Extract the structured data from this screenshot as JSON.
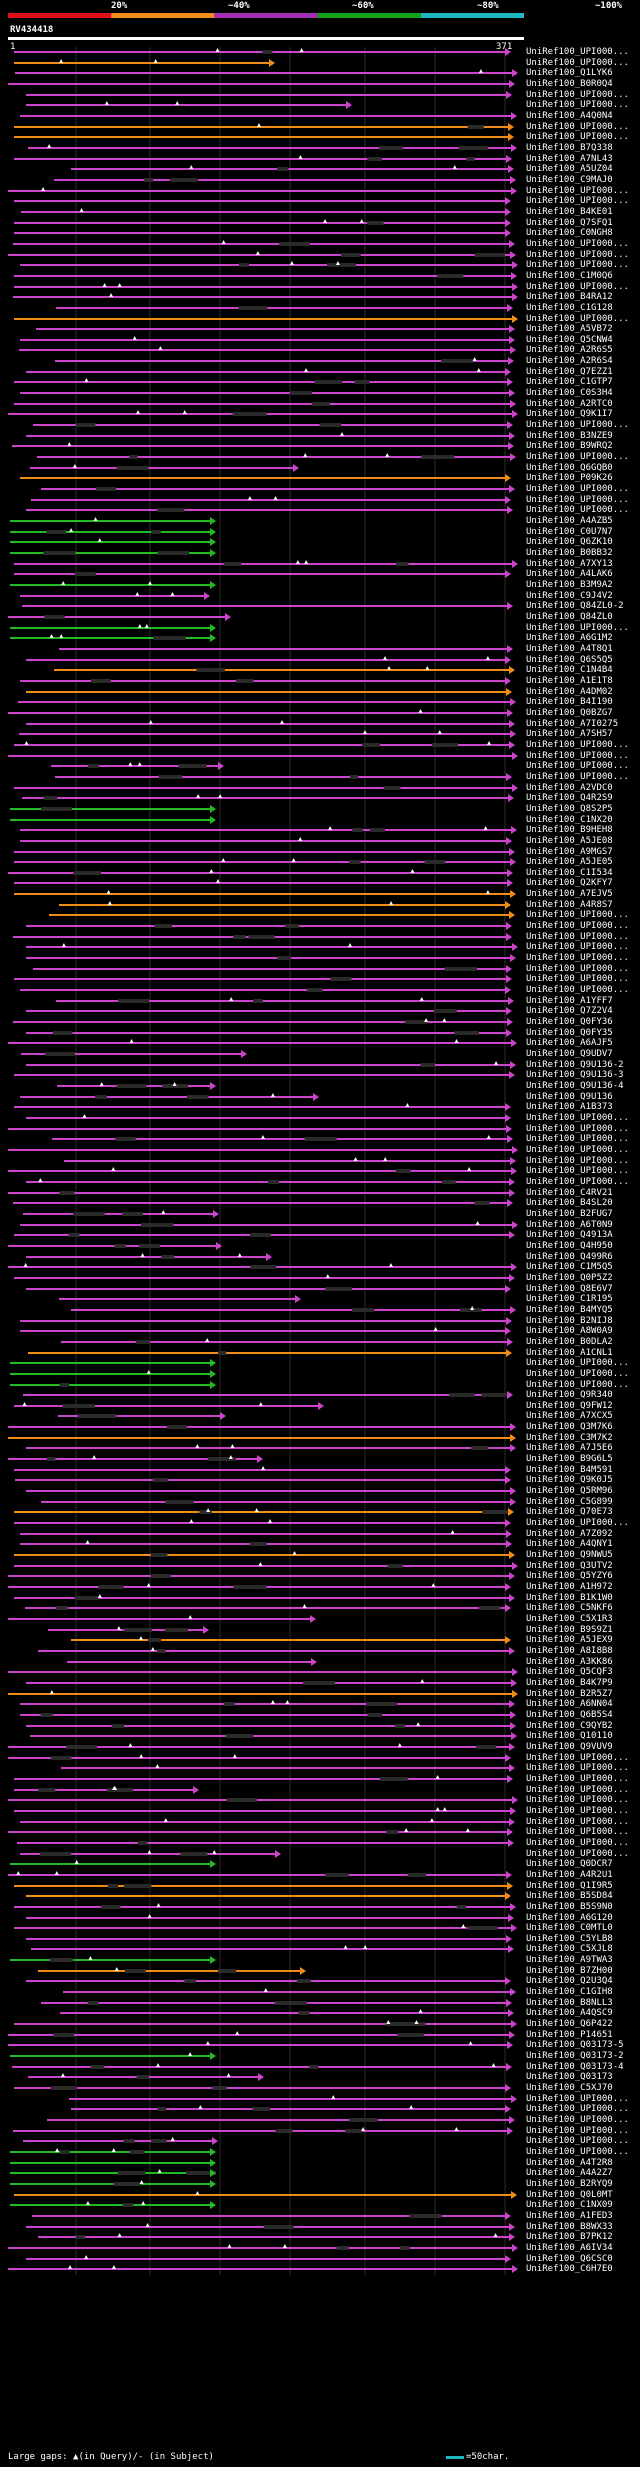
{
  "header": {
    "scale_labels": [
      "20%",
      "~40%",
      "~60%",
      "~80%",
      "~100%"
    ],
    "scale_colors": [
      "#e0101a",
      "#f28c1c",
      "#a52db4",
      "#12a31a",
      "#1eb9c0"
    ],
    "query_id": "RV434418",
    "range_start": "1",
    "range_end": "371"
  },
  "colors": {
    "magenta": "#cc44cc",
    "orange": "#f08c18",
    "green": "#22bb22",
    "gap": "#2a2a2a",
    "grid": "#2b2b2b"
  },
  "sequences": [
    "UniRef100_UPI000...",
    "UniRef100_UPI000...",
    "UniRef100_Q1LYK6",
    "UniRef100_B0R0Q4",
    "UniRef100_UPI000...",
    "UniRef100_UPI000...",
    "UniRef100_A4Q0N4",
    "UniRef100_UPI000...",
    "UniRef100_UPI000...",
    "UniRef100_B7Q338",
    "UniRef100_A7NL43",
    "UniRef100_A5UZ04",
    "UniRef100_C9MAJ0",
    "UniRef100_UPI000...",
    "UniRef100_UPI000...",
    "UniRef100_B4KE01",
    "UniRef100_Q7SFQ1",
    "UniRef100_C0NGH8",
    "UniRef100_UPI000...",
    "UniRef100_UPI000...",
    "UniRef100_UPI000...",
    "UniRef100_C1M0Q6",
    "UniRef100_UPI000...",
    "UniRef100_B4RA12",
    "UniRef100_C1G128",
    "UniRef100_UPI000...",
    "UniRef100_A5VB72",
    "UniRef100_Q5CNW4",
    "UniRef100_A2R6S5",
    "UniRef100_A2R6S4",
    "UniRef100_Q7EZZ1",
    "UniRef100_C1GTP7",
    "UniRef100_C0S3H4",
    "UniRef100_A2RTC0",
    "UniRef100_Q9K1I7",
    "UniRef100_UPI000...",
    "UniRef100_B3NZE9",
    "UniRef100_B9WRQ2",
    "UniRef100_UPI000...",
    "UniRef100_Q6GQB0",
    "UniRef100_P09K26",
    "UniRef100_UPI000...",
    "UniRef100_UPI000...",
    "UniRef100_UPI000...",
    "UniRef100_A4AZB5",
    "UniRef100_C0U7N7",
    "UniRef100_Q6ZK10",
    "UniRef100_B0BB32",
    "UniRef100_A7XY13",
    "UniRef100_A4LAK6",
    "UniRef100_B3M9A2",
    "UniRef100_C9J4V2",
    "UniRef100_Q84ZL0-2",
    "UniRef100_Q84ZL0",
    "UniRef100_UPI000...",
    "UniRef100_A6G1M2",
    "UniRef100_A4T8Q1",
    "UniRef100_Q6S5Q5",
    "UniRef100_C1N4B4",
    "UniRef100_A1E1T8",
    "UniRef100_A4DM02",
    "UniRef100_B4I190",
    "UniRef100_Q0BZG7",
    "UniRef100_A7I0275",
    "UniRef100_A7SH57",
    "UniRef100_UPI000...",
    "UniRef100_UPI000...",
    "UniRef100_UPI000...",
    "UniRef100_UPI000...",
    "UniRef100_A2VDC0",
    "UniRef100_Q4R2S9",
    "UniRef100_Q8S2P5",
    "UniRef100_C1NX20",
    "UniRef100_B9HEH8",
    "UniRef100_A5JE08",
    "UniRef100_A9MGS7",
    "UniRef100_A5JE05",
    "UniRef100_C1I534",
    "UniRef100_Q2KFY7",
    "UniRef100_A7EJV5",
    "UniRef100_A4R8S7",
    "UniRef100_UPI000...",
    "UniRef100_UPI000...",
    "UniRef100_UPI000...",
    "UniRef100_UPI000...",
    "UniRef100_UPI000...",
    "UniRef100_UPI000...",
    "UniRef100_UPI000...",
    "UniRef100_UPI000...",
    "UniRef100_A1YFF7",
    "UniRef100_Q7Z2V4",
    "UniRef100_Q0FY36",
    "UniRef100_Q0FY35",
    "UniRef100_A6AJF5",
    "UniRef100_Q9UDV7",
    "UniRef100_Q9U136-2",
    "UniRef100_Q9U136-3",
    "UniRef100_Q9U136-4",
    "UniRef100_Q9U136",
    "UniRef100_A1B373",
    "UniRef100_UPI000...",
    "UniRef100_UPI000...",
    "UniRef100_UPI000...",
    "UniRef100_UPI000...",
    "UniRef100_UPI000...",
    "UniRef100_UPI000...",
    "UniRef100_UPI000...",
    "UniRef100_C4RV21",
    "UniRef100_B4SL20",
    "UniRef100_B2FUG7",
    "UniRef100_A6T0N9",
    "UniRef100_Q4913A",
    "UniRef100_Q4H950",
    "UniRef100_Q499R6",
    "UniRef100_C1M5Q5",
    "UniRef100_Q0P5Z2",
    "UniRef100_Q8E6V7",
    "UniRef100_C1R195",
    "UniRef100_B4MYQ5",
    "UniRef100_B2NIJ8",
    "UniRef100_A8W0A9",
    "UniRef100_B0DLA2",
    "UniRef100_A1CNL1",
    "UniRef100_UPI000...",
    "UniRef100_UPI000...",
    "UniRef100_UPI000...",
    "UniRef100_Q9R340",
    "UniRef100_Q9FW12",
    "UniRef100_A7XCX5",
    "UniRef100_Q3M7K6",
    "UniRef100_C3M7K2",
    "UniRef100_A7J5E6",
    "UniRef100_B9G6L5",
    "UniRef100_B4M591",
    "UniRef100_Q9K0J5",
    "UniRef100_Q5RM96",
    "UniRef100_C5G899",
    "UniRef100_Q70E73",
    "UniRef100_UPI000...",
    "UniRef100_A7Z092",
    "UniRef100_A4QNY1",
    "UniRef100_Q9NWU5",
    "UniRef100_Q3UTV2",
    "UniRef100_Q5YZY6",
    "UniRef100_A1H972",
    "UniRef100_B1K1W0",
    "UniRef100_C5NKF6",
    "UniRef100_C5X1R3",
    "UniRef100_B9S9Z1",
    "UniRef100_A5JEX9",
    "UniRef100_A8I8B8",
    "UniRef100_A3KK86",
    "UniRef100_Q5CQF3",
    "UniRef100_B4K7P9",
    "UniRef100_B2R5Z7",
    "UniRef100_A6NN04",
    "UniRef100_Q6B5S4",
    "UniRef100_C9QYB2",
    "UniRef100_Q10110",
    "UniRef100_Q9VUV9",
    "UniRef100_UPI000...",
    "UniRef100_UPI000...",
    "UniRef100_UPI000...",
    "UniRef100_UPI000...",
    "UniRef100_UPI000...",
    "UniRef100_UPI000...",
    "UniRef100_UPI000...",
    "UniRef100_UPI000...",
    "UniRef100_UPI000...",
    "UniRef100_UPI000...",
    "UniRef100_Q0DCR7",
    "UniRef100_A4R2U1",
    "UniRef100_Q1I9R5",
    "UniRef100_B5SD84",
    "UniRef100_B5S9N0",
    "UniRef100_A6G120",
    "UniRef100_C0MTL0",
    "UniRef100_C5YLB8",
    "UniRef100_C5XJL8",
    "UniRef100_A9TWA3",
    "UniRef100_B7ZH00",
    "UniRef100_Q2U3Q4",
    "UniRef100_C1GIH8",
    "UniRef100_B8NLL3",
    "UniRef100_A4QSC9",
    "UniRef100_Q6P422",
    "UniRef100_P14651",
    "UniRef100_Q03173-5",
    "UniRef100_Q03173-2",
    "UniRef100_Q03173-4",
    "UniRef100_Q03173",
    "UniRef100_C5XJ70",
    "UniRef100_UPI000...",
    "UniRef100_UPI000...",
    "UniRef100_UPI000...",
    "UniRef100_UPI000...",
    "UniRef100_UPI000...",
    "UniRef100_UPI000...",
    "UniRef100_A4T2R8",
    "UniRef100_A4A2Z7",
    "UniRef100_B2RYQ9",
    "UniRef100_Q0L0MT",
    "UniRef100_C1NX09",
    "UniRef100_A1FED3",
    "UniRef100_B8WX33",
    "UniRef100_B7PK12",
    "UniRef100_A6IV34",
    "UniRef100_Q6CSC0",
    "UniRef100_C6H7E0"
  ],
  "footer": {
    "left_text": "Large gaps: ▲(in Query)/- (in Subject)",
    "right_text": "=50char."
  }
}
